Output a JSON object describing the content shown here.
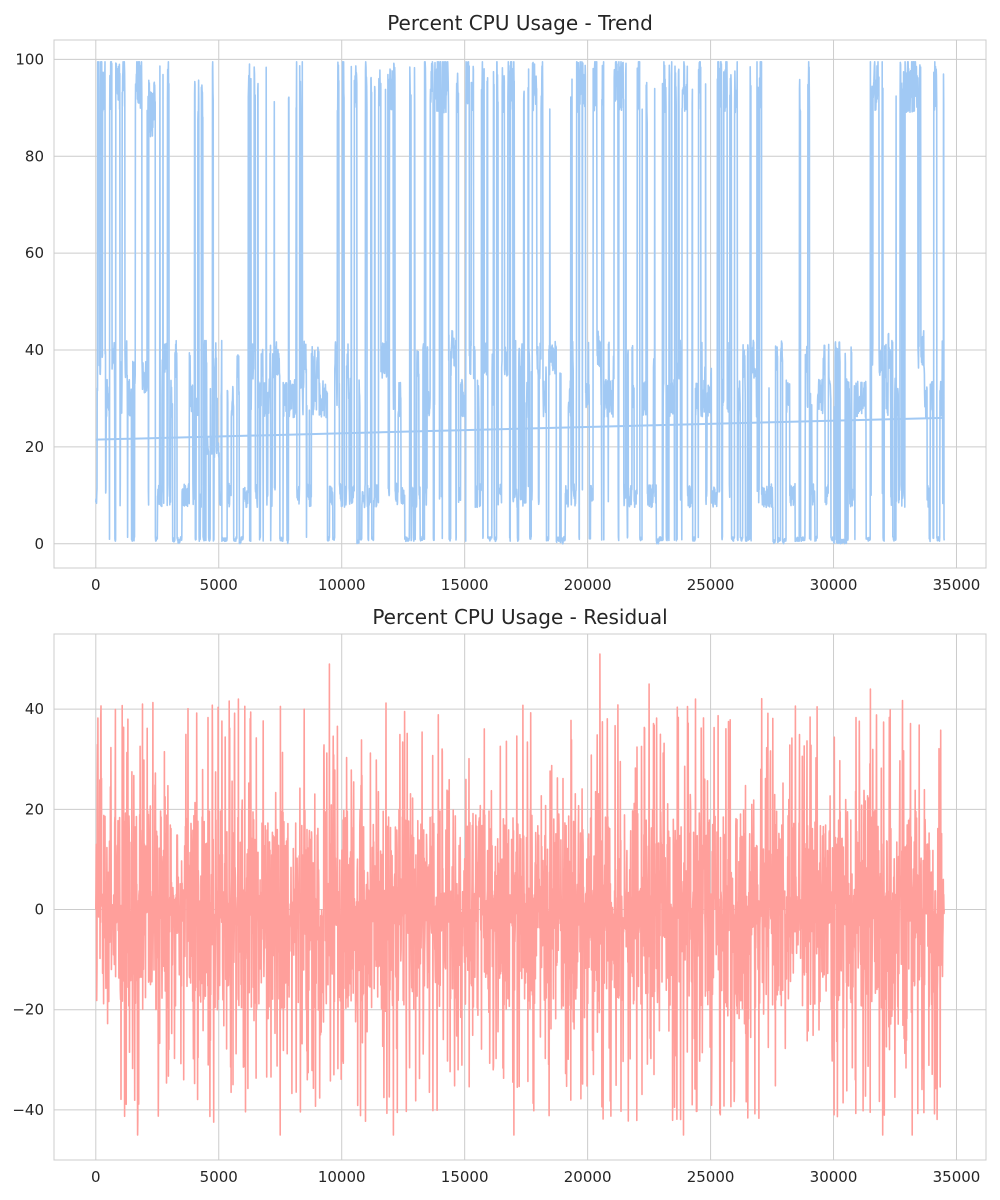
{
  "chart_data": [
    {
      "type": "line",
      "title": "Percent CPU Usage - Trend",
      "xlabel": "",
      "ylabel": "",
      "xlim": [
        -1700,
        36200
      ],
      "ylim": [
        -5,
        104
      ],
      "xticks": [
        0,
        5000,
        10000,
        15000,
        20000,
        25000,
        30000,
        35000
      ],
      "yticks": [
        0,
        20,
        40,
        60,
        80,
        100
      ],
      "x_range": [
        0,
        34500
      ],
      "grid": true,
      "color": "#a1c9f4",
      "series": [
        {
          "note_type": "noisy_regime_signal",
          "x": [
            0,
            150,
            400,
            700,
            1000,
            1500,
            2000,
            2500,
            3000,
            3500,
            4000,
            4500,
            5000,
            5500,
            6000,
            6500,
            7000,
            7500,
            8000,
            8500,
            9000,
            9500,
            10000,
            10500,
            11000,
            11500,
            12000,
            12500,
            13000,
            13500,
            14000,
            14500,
            15000,
            15500,
            16000,
            16500,
            17000,
            17500,
            18000,
            18500,
            19000,
            19500,
            20000,
            20500,
            21000,
            21500,
            22000,
            22500,
            23000,
            23500,
            24000,
            24500,
            25000,
            25500,
            26000,
            26500,
            27000,
            27500,
            28000,
            28500,
            29000,
            29500,
            30000,
            30500,
            31000,
            31500,
            32000,
            32500,
            33000,
            33500,
            34000,
            34500
          ],
          "values": [
            10,
            95,
            0,
            95,
            35,
            35,
            90,
            10,
            0,
            10,
            90,
            20,
            10,
            0,
            95,
            30,
            10,
            0,
            95,
            30,
            30,
            10,
            30,
            0,
            10,
            95,
            30,
            0,
            10,
            95,
            40,
            10,
            95,
            95,
            10,
            95,
            10,
            95,
            40,
            0,
            10,
            95,
            40,
            30,
            95,
            10,
            90,
            0,
            30,
            95,
            10,
            30,
            10,
            95,
            30,
            95,
            10,
            0,
            30,
            95,
            10,
            30,
            0,
            10,
            30,
            95,
            40,
            10,
            95,
            40,
            95,
            45
          ]
        },
        {
          "name": "",
          "x": [
            0,
            34500
          ],
          "values": [
            21.5,
            26
          ]
        }
      ]
    },
    {
      "type": "line",
      "title": "Percent CPU Usage - Residual",
      "xlabel": "",
      "ylabel": "",
      "xlim": [
        -1700,
        36200
      ],
      "ylim": [
        -50,
        55
      ],
      "xticks": [
        0,
        5000,
        10000,
        15000,
        20000,
        25000,
        30000,
        35000
      ],
      "yticks": [
        -40,
        -20,
        0,
        20,
        40
      ],
      "x_range": [
        0,
        34500
      ],
      "grid": true,
      "color": "#ff9f9b",
      "series": [
        {
          "note_type": "noisy_residual_signal",
          "x": [
            0,
            200,
            1700,
            1900,
            5800,
            7500,
            9500,
            12100,
            17000,
            20500,
            22500,
            23900,
            28000,
            31500,
            32000,
            33200,
            34500
          ],
          "values": [
            0,
            38,
            -45,
            41,
            42,
            -45,
            49,
            -45,
            -45,
            51,
            45,
            -45,
            0,
            44,
            -45,
            -45,
            0
          ]
        }
      ]
    }
  ]
}
